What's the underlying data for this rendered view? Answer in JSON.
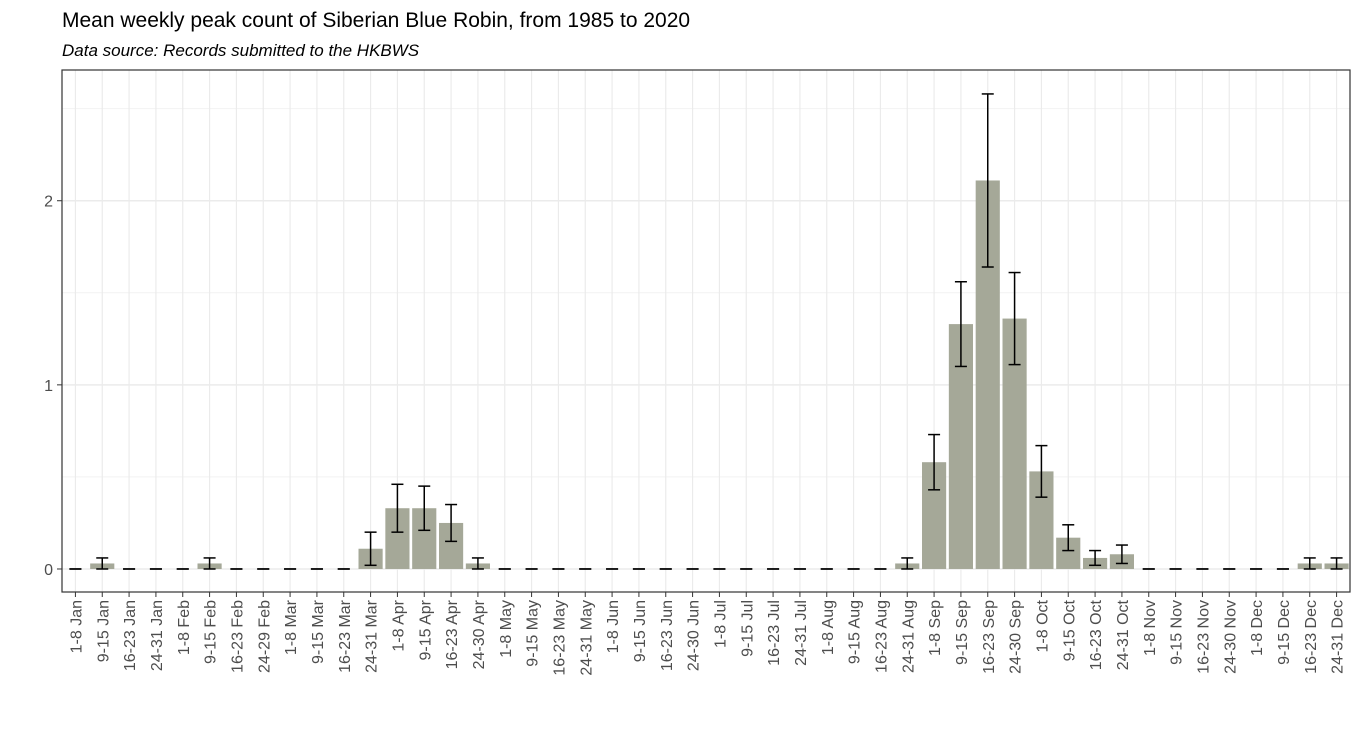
{
  "chart_data": {
    "type": "bar",
    "title": "Mean weekly peak count of Siberian Blue Robin, from 1985 to 2020",
    "subtitle": "Data source: Records submitted to the HKBWS",
    "categories": [
      "1-8 Jan",
      "9-15 Jan",
      "16-23 Jan",
      "24-31 Jan",
      "1-8 Feb",
      "9-15 Feb",
      "16-23 Feb",
      "24-29 Feb",
      "1-8 Mar",
      "9-15 Mar",
      "16-23 Mar",
      "24-31 Mar",
      "1-8 Apr",
      "9-15 Apr",
      "16-23 Apr",
      "24-30 Apr",
      "1-8 May",
      "9-15 May",
      "16-23 May",
      "24-31 May",
      "1-8 Jun",
      "9-15 Jun",
      "16-23 Jun",
      "24-30 Jun",
      "1-8 Jul",
      "9-15 Jul",
      "16-23 Jul",
      "24-31 Jul",
      "1-8 Aug",
      "9-15 Aug",
      "16-23 Aug",
      "24-31 Aug",
      "1-8 Sep",
      "9-15 Sep",
      "16-23 Sep",
      "24-30 Sep",
      "1-8 Oct",
      "9-15 Oct",
      "16-23 Oct",
      "24-31 Oct",
      "1-8 Nov",
      "9-15 Nov",
      "16-23 Nov",
      "24-30 Nov",
      "1-8 Dec",
      "9-15 Dec",
      "16-23 Dec",
      "24-31 Dec"
    ],
    "values": [
      0,
      0.03,
      0,
      0,
      0,
      0.03,
      0,
      0,
      0,
      0,
      0,
      0.11,
      0.33,
      0.33,
      0.25,
      0.03,
      0,
      0,
      0,
      0,
      0,
      0,
      0,
      0,
      0,
      0,
      0,
      0,
      0,
      0,
      0,
      0.03,
      0.58,
      1.33,
      2.11,
      1.36,
      0.53,
      0.17,
      0.06,
      0.08,
      0,
      0,
      0,
      0,
      0,
      0,
      0.03,
      0.03
    ],
    "errors": [
      0,
      0.03,
      0,
      0,
      0,
      0.03,
      0,
      0,
      0,
      0,
      0,
      0.09,
      0.13,
      0.12,
      0.1,
      0.03,
      0,
      0,
      0,
      0,
      0,
      0,
      0,
      0,
      0,
      0,
      0,
      0,
      0,
      0,
      0,
      0.03,
      0.15,
      0.23,
      0.47,
      0.25,
      0.14,
      0.07,
      0.04,
      0.05,
      0,
      0,
      0,
      0,
      0,
      0,
      0.03,
      0.03
    ],
    "color": "#a5a898",
    "ylim": [
      -0.125,
      2.71
    ],
    "yticks": [
      0,
      1,
      2
    ],
    "grid": true
  }
}
